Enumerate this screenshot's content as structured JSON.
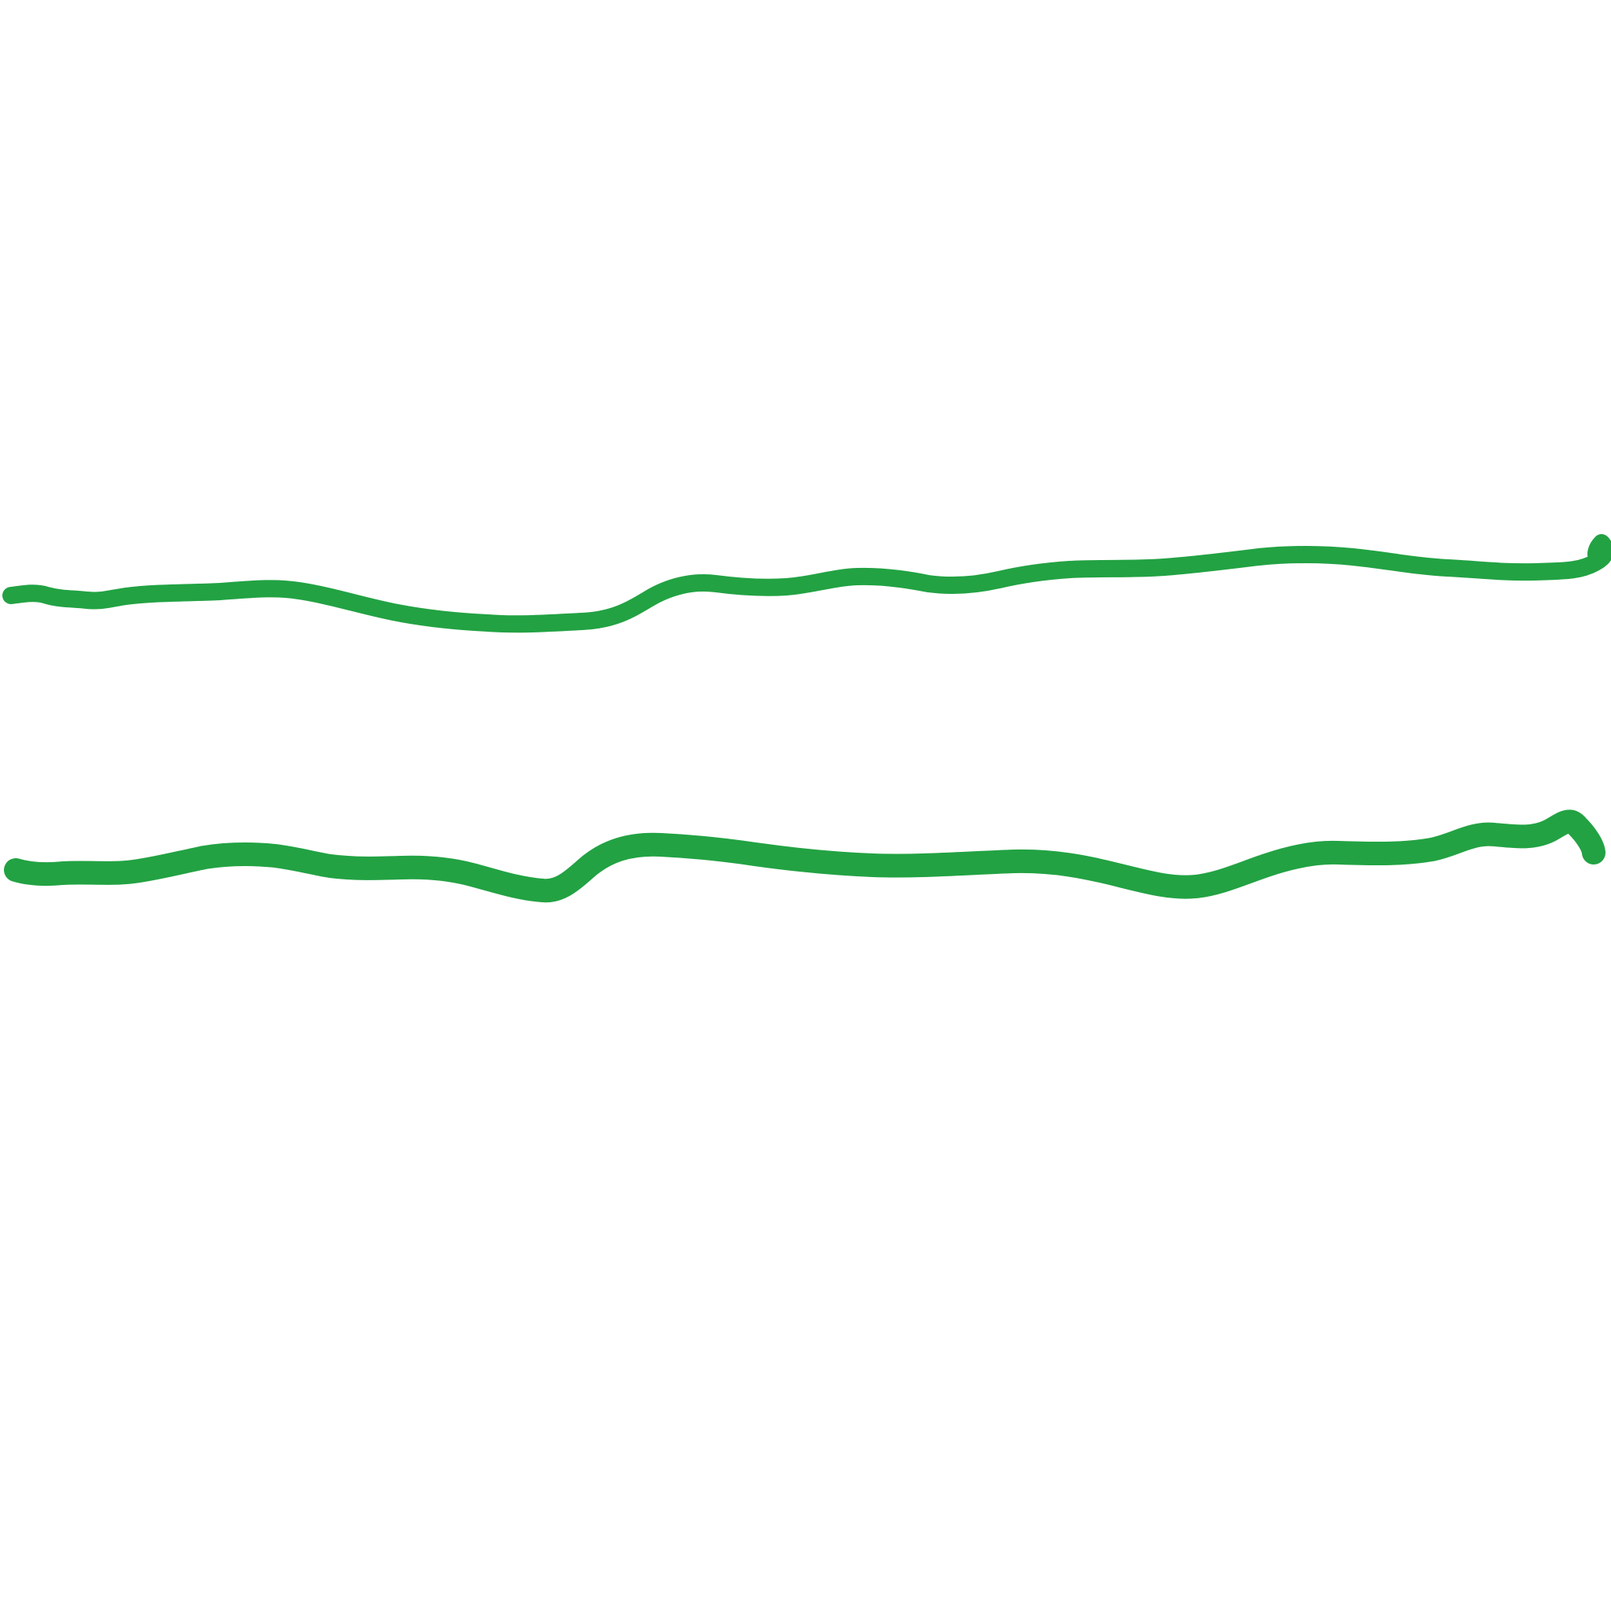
{
  "canvas": {
    "background": "#ffffff"
  },
  "strokes": [
    {
      "id": "stroke-1",
      "kind": "freehand-wavy-line",
      "color": "#22a243"
    },
    {
      "id": "stroke-2",
      "kind": "freehand-wavy-line",
      "color": "#22a243"
    }
  ]
}
